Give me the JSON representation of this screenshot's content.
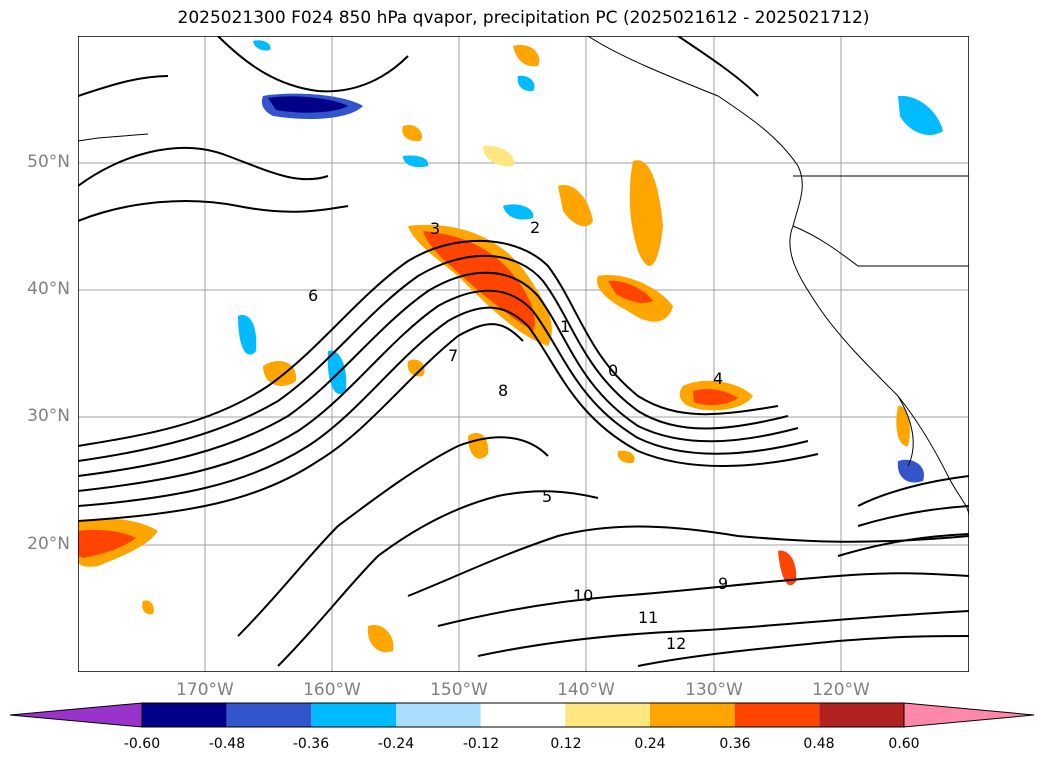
{
  "title": "2025021300 F024 850 hPa qvapor, precipitation PC (2025021612 - 2025021712)",
  "lat_labels": [
    "50°N",
    "40°N",
    "30°N",
    "20°N"
  ],
  "lon_labels": [
    "170°W",
    "160°W",
    "150°W",
    "140°W",
    "130°W",
    "120°W"
  ],
  "contour_labels": [
    "3",
    "2",
    "1",
    "0",
    "4",
    "5",
    "6",
    "7",
    "8",
    "9",
    "10",
    "11",
    "12"
  ],
  "colorbar": {
    "ticks": [
      "-0.60",
      "-0.48",
      "-0.36",
      "-0.24",
      "-0.12",
      "0.12",
      "0.24",
      "0.36",
      "0.48",
      "0.60"
    ],
    "colors": [
      "#9933cc",
      "#000088",
      "#3355cc",
      "#00bbff",
      "#aaddff",
      "#ffffff",
      "#ffe680",
      "#ffa500",
      "#ff4400",
      "#b22222",
      "#ff88aa"
    ],
    "extend_low_color": "#9933cc",
    "extend_high_color": "#ff88aa"
  },
  "map_extent": {
    "lon_min": -180,
    "lon_max": -110,
    "lat_min": 10,
    "lat_max": 60
  }
}
